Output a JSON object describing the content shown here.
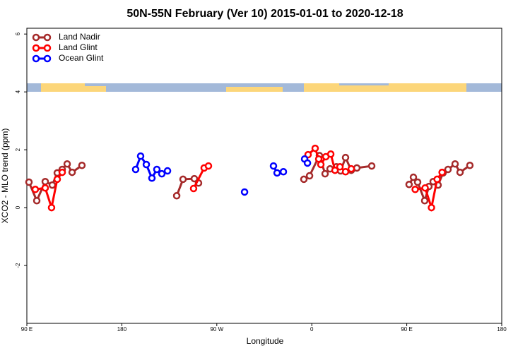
{
  "chart_data": {
    "type": "line",
    "title": "50N-55N February (Ver 10)   2015-01-01 to 2020-12-18",
    "x_label": "Longitude",
    "y_label": "XCO2 - MLO trend (ppm)",
    "xlim": [
      90,
      540
    ],
    "ylim": [
      -4,
      6.2
    ],
    "xticks": [
      {
        "value": 90,
        "label": "90 E"
      },
      180,
      {
        "value": 270,
        "label": "90 W"
      },
      {
        "value": 360,
        "label": "0"
      },
      {
        "value": 450,
        "label": "90 E"
      },
      {
        "value": 540,
        "label": "180"
      }
    ],
    "yticks": [
      -2,
      0,
      2,
      4,
      6
    ],
    "legend": "top-left",
    "series": [
      {
        "name": "Land Nadir",
        "color": "#a52a2a",
        "x": [
          92.0,
          99.4,
          107.4,
          114.1,
          118.8,
          123.5,
          128.2,
          132.9,
          142.2,
          null,
          232.0,
          238.0,
          248.7,
          252.7,
          null,
          352.5,
          357.9,
          367.2,
          372.6,
          377.3,
          383.3,
          387.3,
          392.0,
          397.4,
          402.7,
          416.8,
          null,
          452.2,
          456.3,
          460.3,
          467.0,
          471.0,
          475.0,
          479.7,
          484.4,
          489.1,
          495.8,
          500.5,
          509.8
        ],
        "values": [
          0.88,
          0.24,
          0.9,
          0.78,
          1.2,
          1.32,
          1.51,
          1.22,
          1.46,
          null,
          0.41,
          0.98,
          1.0,
          0.85,
          null,
          0.98,
          1.1,
          1.8,
          1.17,
          1.34,
          1.41,
          1.27,
          1.73,
          1.29,
          1.37,
          1.44,
          null,
          0.8,
          1.05,
          0.88,
          0.24,
          0.73,
          0.9,
          0.78,
          1.2,
          1.32,
          1.51,
          1.22,
          1.46
        ]
      },
      {
        "name": "Land Glint",
        "color": "#ff0000",
        "x": [
          98.0,
          107.4,
          113.4,
          118.8,
          123.5,
          null,
          248.0,
          258.0,
          262.1,
          null,
          356.5,
          363.2,
          366.6,
          368.6,
          373.3,
          378.0,
          382.0,
          386.7,
          392.0,
          397.4,
          null,
          458.0,
          467.4,
          473.4,
          478.8,
          483.5
        ],
        "values": [
          0.63,
          0.68,
          0.0,
          0.98,
          1.22,
          null,
          0.66,
          1.37,
          1.44,
          null,
          1.83,
          2.05,
          1.68,
          1.49,
          1.76,
          1.85,
          1.29,
          1.41,
          1.24,
          1.34,
          null,
          0.63,
          0.68,
          0.0,
          0.98,
          1.22
        ]
      },
      {
        "name": "Ocean Glint",
        "color": "#0000ff",
        "x": [
          193.1,
          197.8,
          203.2,
          208.5,
          213.2,
          217.9,
          223.3,
          null,
          296.3,
          null,
          323.7,
          327.1,
          333.1,
          null,
          353.2,
          355.9
        ],
        "values": [
          1.32,
          1.78,
          1.49,
          1.02,
          1.32,
          1.17,
          1.27,
          null,
          0.54,
          null,
          1.44,
          1.2,
          1.24,
          null,
          1.68,
          1.54
        ]
      }
    ]
  }
}
